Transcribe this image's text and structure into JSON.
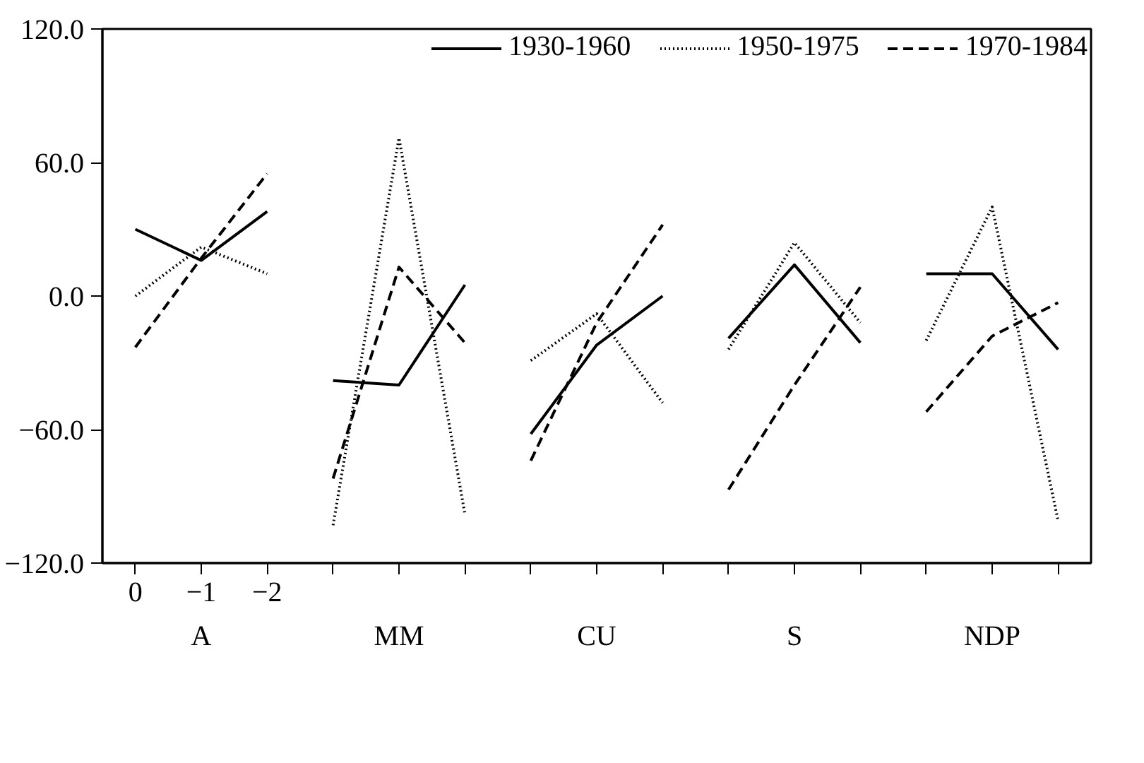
{
  "chart_data": {
    "type": "line",
    "categories": [
      "0",
      "−1",
      "−2",
      null,
      null,
      null,
      null,
      null,
      null,
      null,
      null,
      null,
      null,
      null,
      null
    ],
    "series": [
      {
        "name": "1930-1960",
        "color": "#000000",
        "line_style": "solid",
        "values": [
          30,
          16,
          38,
          -38,
          -40,
          5,
          -62,
          -22,
          0,
          -19,
          14,
          -21,
          10,
          10,
          -24
        ]
      },
      {
        "name": "1950-1975",
        "color": "#000000",
        "line_style": "dotted",
        "values": [
          0,
          22,
          10,
          -103,
          71,
          -98,
          -29,
          -8,
          -48,
          -24,
          24,
          -12,
          -20,
          40,
          -101
        ]
      },
      {
        "name": "1970-1984",
        "color": "#000000",
        "line_style": "dashed",
        "values": [
          -23,
          17,
          55,
          -82,
          13,
          -21,
          -74,
          -12,
          32,
          -87,
          -40,
          4,
          -52,
          -18,
          -3
        ]
      }
    ],
    "ylim": [
      -120,
      120
    ],
    "yticks": [
      {
        "value": -120,
        "label": "−120.0"
      },
      {
        "value": -60,
        "label": "−60.0"
      },
      {
        "value": 0,
        "label": "0.0"
      },
      {
        "value": 60,
        "label": "60.0"
      },
      {
        "value": 120,
        "label": "120.0"
      }
    ],
    "annotations": [
      "A",
      "MM",
      "CU",
      "S",
      "NDP"
    ],
    "legend": "top"
  }
}
